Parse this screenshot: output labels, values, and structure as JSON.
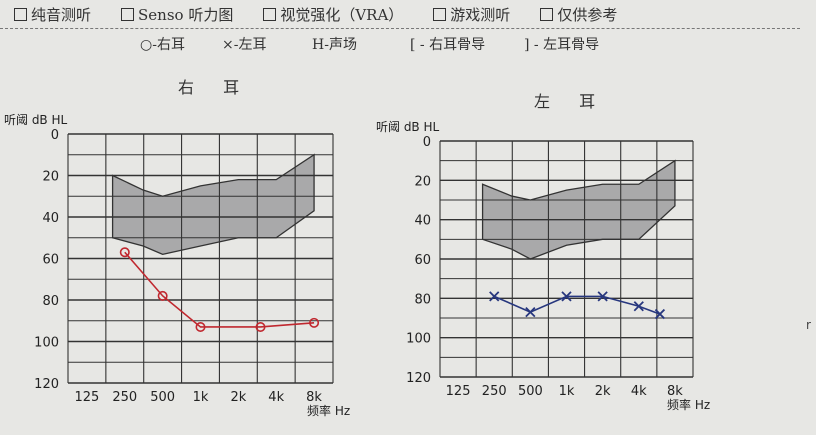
{
  "header": {
    "options": [
      {
        "label": "纯音测听",
        "checked": false
      },
      {
        "label": "Senso 听力图",
        "checked": false
      },
      {
        "label": "视觉强化（VRA）",
        "checked": false
      },
      {
        "label": "游戏测听",
        "checked": false
      },
      {
        "label": "仅供参考",
        "checked": false
      }
    ],
    "legend": [
      "○-右耳",
      "×-左耳",
      "H-声场",
      "[ - 右耳骨导",
      "] - 左耳骨导"
    ]
  },
  "colors": {
    "right_ear": "#c0282f",
    "left_ear": "#27377e",
    "shade": "#a9a9aa",
    "grid": "#333333"
  },
  "chart_data": [
    {
      "type": "line",
      "title": "右 耳",
      "xlabel": "频率 Hz",
      "ylabel": "听阈 dB HL",
      "x_tick_labels": [
        "125",
        "250",
        "500",
        "1k",
        "2k",
        "4k",
        "8k"
      ],
      "y_tick_labels": [
        "0",
        "20",
        "40",
        "60",
        "80",
        "100",
        "120"
      ],
      "ylim": [
        0,
        120
      ],
      "y_inverted": true,
      "grid": true,
      "shaded_region": {
        "upper": [
          [
            200,
            20
          ],
          [
            350,
            27
          ],
          [
            500,
            30
          ],
          [
            1000,
            25
          ],
          [
            2000,
            22
          ],
          [
            4000,
            22
          ],
          [
            8000,
            10
          ]
        ],
        "lower": [
          [
            200,
            50
          ],
          [
            350,
            54
          ],
          [
            500,
            58
          ],
          [
            1000,
            54
          ],
          [
            2000,
            50
          ],
          [
            4000,
            50
          ],
          [
            8000,
            37
          ]
        ]
      },
      "series": [
        {
          "marker": "circle",
          "color": "#c0282f",
          "points": [
            [
              250,
              57
            ],
            [
              500,
              78
            ],
            [
              1000,
              93
            ],
            [
              3000,
              93
            ],
            [
              8000,
              91
            ]
          ]
        }
      ]
    },
    {
      "type": "line",
      "title": "左 耳",
      "xlabel": "频率 Hz",
      "ylabel": "听阈 dB HL",
      "x_tick_labels": [
        "125",
        "250",
        "500",
        "1k",
        "2k",
        "4k",
        "8k"
      ],
      "y_tick_labels": [
        "0",
        "20",
        "40",
        "60",
        "80",
        "100",
        "120"
      ],
      "ylim": [
        0,
        120
      ],
      "y_inverted": true,
      "grid": true,
      "shaded_region": {
        "upper": [
          [
            200,
            22
          ],
          [
            350,
            28
          ],
          [
            500,
            30
          ],
          [
            1000,
            25
          ],
          [
            2000,
            22
          ],
          [
            4000,
            22
          ],
          [
            8000,
            10
          ]
        ],
        "lower": [
          [
            200,
            50
          ],
          [
            350,
            55
          ],
          [
            500,
            60
          ],
          [
            1000,
            53
          ],
          [
            2000,
            50
          ],
          [
            4000,
            50
          ],
          [
            8000,
            33
          ]
        ]
      },
      "series": [
        {
          "marker": "x",
          "color": "#27377e",
          "points": [
            [
              250,
              79
            ],
            [
              500,
              87
            ],
            [
              1000,
              79
            ],
            [
              2000,
              79
            ],
            [
              4000,
              84
            ],
            [
              6000,
              88
            ]
          ]
        }
      ]
    }
  ]
}
